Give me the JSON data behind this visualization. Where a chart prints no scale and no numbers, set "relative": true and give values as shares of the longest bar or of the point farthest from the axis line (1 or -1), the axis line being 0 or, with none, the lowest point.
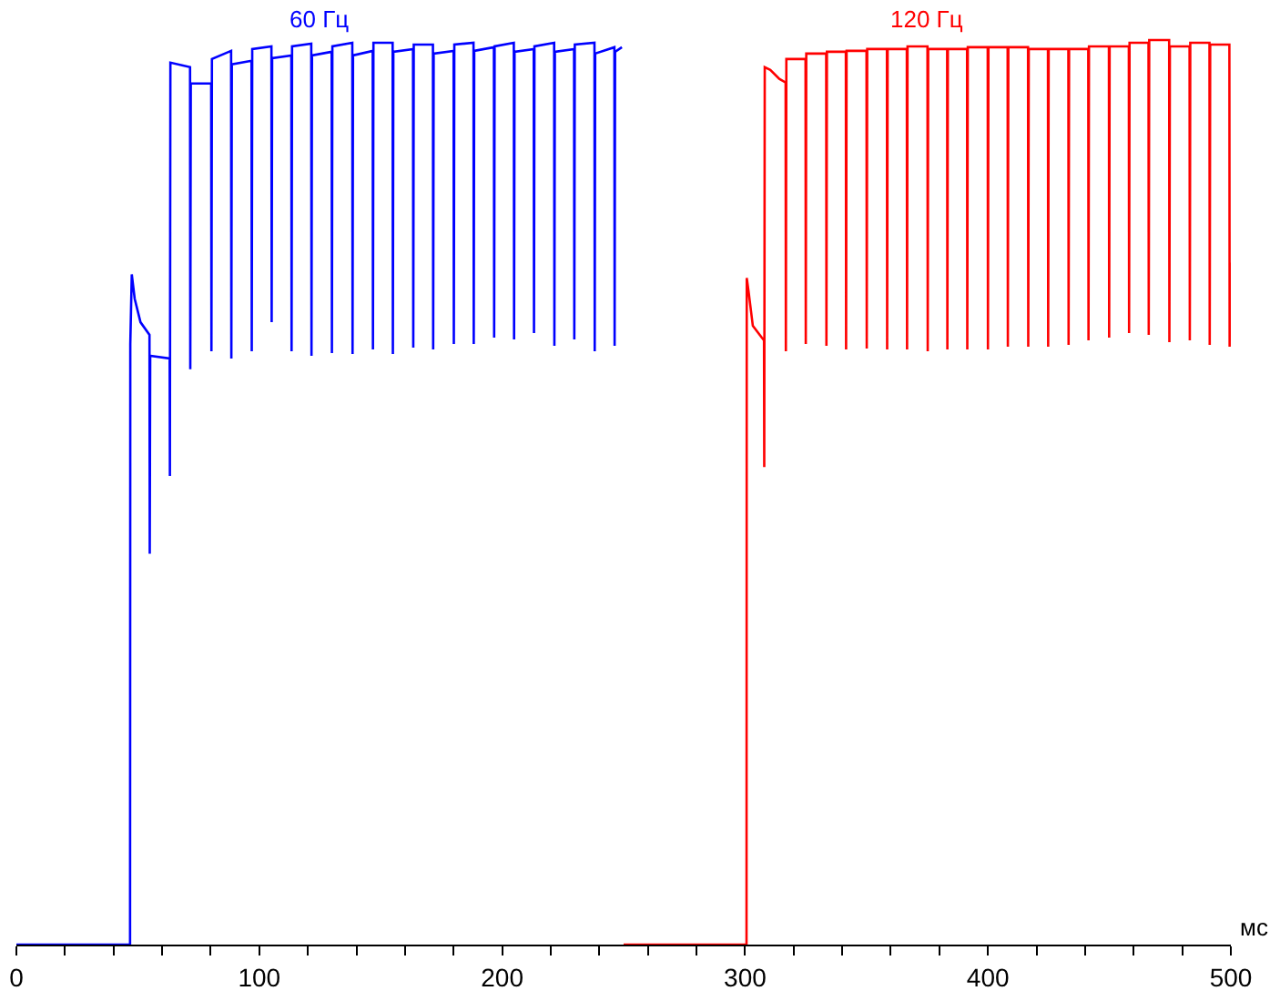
{
  "chart_data": {
    "type": "line",
    "relative": true,
    "xlabel": "мс",
    "xlim": [
      0,
      500
    ],
    "xticks": [
      0,
      {
        "value": 20,
        "label": null
      },
      {
        "value": 40,
        "label": null
      },
      {
        "value": 60,
        "label": null
      },
      {
        "value": 80,
        "label": null
      },
      100,
      {
        "value": 120,
        "label": null
      },
      {
        "value": 140,
        "label": null
      },
      {
        "value": 160,
        "label": null
      },
      {
        "value": 180,
        "label": null
      },
      200,
      {
        "value": 220,
        "label": null
      },
      {
        "value": 240,
        "label": null
      },
      {
        "value": 260,
        "label": null
      },
      {
        "value": 280,
        "label": null
      },
      300,
      {
        "value": 320,
        "label": null
      },
      {
        "value": 340,
        "label": null
      },
      {
        "value": 360,
        "label": null
      },
      {
        "value": 380,
        "label": null
      },
      400,
      {
        "value": 420,
        "label": null
      },
      {
        "value": 440,
        "label": null
      },
      {
        "value": 460,
        "label": null
      },
      {
        "value": 480,
        "label": null
      },
      500
    ],
    "series": [
      {
        "name": "60 Гц",
        "color": "#0000ff",
        "x": [
          0,
          46.8,
          46.9,
          47.5,
          48.7,
          51.1,
          54.8,
          54.9,
          55.1,
          63.1,
          63.2,
          63.4,
          71.5,
          71.6,
          71.8,
          80.2,
          80.3,
          80.5,
          88.4,
          88.5,
          88.7,
          96.8,
          96.9,
          97.1,
          105.0,
          105.1,
          105.3,
          113.2,
          113.3,
          113.5,
          121.4,
          121.5,
          121.7,
          129.8,
          129.9,
          130.1,
          138.3,
          138.4,
          138.6,
          146.7,
          146.8,
          147.0,
          154.9,
          155.0,
          155.2,
          163.3,
          163.4,
          163.6,
          171.5,
          171.6,
          171.8,
          180.0,
          180.1,
          180.3,
          188.2,
          188.3,
          188.5,
          196.6,
          196.7,
          196.9,
          204.8,
          204.9,
          205.1,
          213.0,
          213.1,
          213.3,
          221.4,
          221.5,
          221.7,
          229.6,
          229.7,
          229.9,
          238.0,
          238.1,
          238.3,
          246.2,
          246.3,
          246.5,
          249.3
        ],
        "values": [
          0,
          0,
          0.664,
          0.741,
          0.714,
          0.688,
          0.674,
          0.432,
          0.651,
          0.648,
          0.518,
          0.975,
          0.97,
          0.636,
          0.952,
          0.952,
          0.656,
          0.979,
          0.988,
          0.648,
          0.973,
          0.977,
          0.656,
          0.99,
          0.993,
          0.688,
          0.98,
          0.983,
          0.656,
          0.993,
          0.996,
          0.651,
          0.983,
          0.987,
          0.654,
          0.993,
          0.997,
          0.653,
          0.983,
          0.988,
          0.658,
          0.997,
          0.997,
          0.653,
          0.987,
          0.99,
          0.66,
          0.995,
          0.995,
          0.658,
          0.985,
          0.988,
          0.664,
          0.995,
          0.997,
          0.664,
          0.988,
          0.992,
          0.671,
          0.993,
          0.997,
          0.669,
          0.987,
          0.99,
          0.676,
          0.993,
          0.997,
          0.662,
          0.987,
          0.99,
          0.669,
          0.995,
          0.997,
          0.656,
          0.985,
          0.992,
          0.662,
          0.987,
          0.992
        ]
      },
      {
        "name": "120 Гц",
        "color": "#ff0000",
        "x": [
          250,
          300.6,
          300.7,
          301.5,
          303.2,
          306.9,
          307.8,
          307.9,
          308.1,
          310.4,
          314.1,
          316.7,
          316.8,
          317.0,
          324.9,
          325.0,
          325.2,
          333.4,
          333.5,
          333.7,
          341.5,
          341.6,
          341.8,
          350.0,
          350.1,
          350.3,
          358.4,
          358.5,
          358.7,
          366.6,
          366.7,
          366.9,
          375.1,
          375.2,
          375.4,
          383.2,
          383.3,
          383.5,
          391.4,
          391.5,
          391.7,
          399.9,
          400.0,
          400.2,
          408.1,
          408.2,
          408.4,
          416.5,
          416.6,
          416.8,
          424.7,
          424.8,
          425.0,
          433.1,
          433.2,
          433.4,
          441.3,
          441.4,
          441.6,
          449.8,
          449.9,
          450.1,
          458.0,
          458.1,
          458.3,
          466.1,
          466.2,
          466.4,
          474.6,
          474.7,
          474.9,
          483.0,
          483.1,
          483.3,
          491.2,
          491.3,
          491.5,
          499.4,
          499.5,
          499.6,
          499.8
        ],
        "values": [
          0,
          0,
          0.737,
          0.721,
          0.684,
          0.671,
          0.668,
          0.528,
          0.97,
          0.967,
          0.957,
          0.953,
          0.656,
          0.979,
          0.979,
          0.664,
          0.985,
          0.985,
          0.662,
          0.987,
          0.987,
          0.658,
          0.988,
          0.988,
          0.659,
          0.99,
          0.99,
          0.658,
          0.99,
          0.99,
          0.658,
          0.993,
          0.993,
          0.656,
          0.99,
          0.99,
          0.658,
          0.99,
          0.99,
          0.658,
          0.992,
          0.992,
          0.658,
          0.992,
          0.992,
          0.661,
          0.992,
          0.992,
          0.661,
          0.99,
          0.99,
          0.661,
          0.99,
          0.99,
          0.663,
          0.99,
          0.99,
          0.668,
          0.993,
          0.993,
          0.671,
          0.993,
          0.993,
          0.676,
          0.997,
          0.997,
          0.674,
          1.0,
          1.0,
          0.666,
          0.993,
          0.993,
          0.668,
          0.997,
          0.997,
          0.663,
          0.995,
          0.995,
          0.661,
          0.754,
          0.711
        ]
      }
    ]
  }
}
